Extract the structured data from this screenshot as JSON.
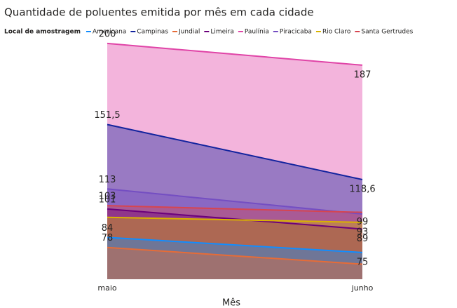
{
  "chart_data": {
    "type": "area",
    "title": "Quantidade de poluentes emitida por mês em cada cidade",
    "legend_title": "Local de amostragem",
    "x_label": "Mês",
    "categories": [
      "maio",
      "junho"
    ],
    "ylim": [
      59,
      205
    ],
    "series": [
      {
        "name": "Americana",
        "color": "#118DFF",
        "values": [
          84,
          75
        ],
        "value_labels": [
          "84",
          "75"
        ]
      },
      {
        "name": "Campinas",
        "color": "#12239E",
        "values": [
          151.5,
          118.6
        ],
        "value_labels": [
          "151,5",
          "118,6"
        ]
      },
      {
        "name": "Jundial",
        "color": "#E66C37",
        "values": [
          78,
          68
        ],
        "value_labels": [
          "78",
          null
        ]
      },
      {
        "name": "Limeira",
        "color": "#6B007B",
        "values": [
          101,
          89
        ],
        "value_labels": [
          "101",
          "89"
        ]
      },
      {
        "name": "Paulínia",
        "color": "#E044A7",
        "values": [
          200,
          187
        ],
        "value_labels": [
          "200",
          "187"
        ]
      },
      {
        "name": "Piracicaba",
        "color": "#744EC2",
        "values": [
          113,
          98
        ],
        "value_labels": [
          "113",
          null
        ]
      },
      {
        "name": "Rio Claro",
        "color": "#D9B300",
        "values": [
          96,
          93
        ],
        "value_labels": [
          null,
          "93"
        ]
      },
      {
        "name": "Santa Gertrudes",
        "color": "#D64550",
        "values": [
          103,
          99
        ],
        "value_labels": [
          "103",
          "99"
        ]
      }
    ]
  }
}
